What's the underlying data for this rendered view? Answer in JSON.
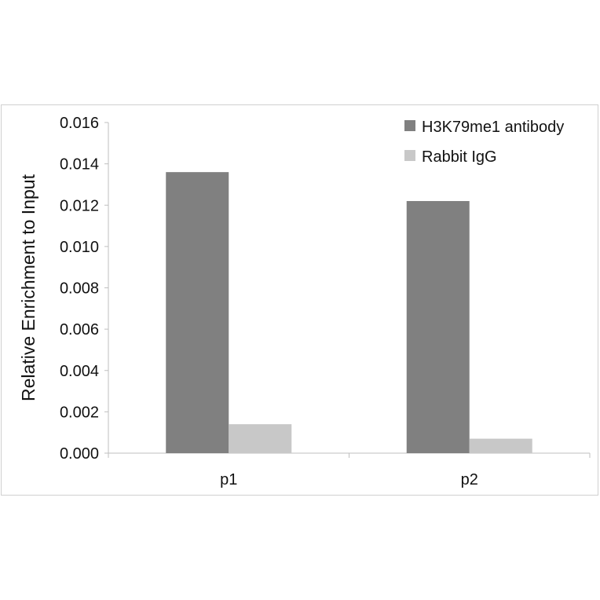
{
  "chart_data": {
    "type": "bar",
    "title": "",
    "xlabel": "",
    "ylabel": "Relative Enrichment to Input",
    "categories": [
      "p1",
      "p2"
    ],
    "series": [
      {
        "name": "H3K79me1 antibody",
        "values": [
          0.0136,
          0.0122
        ],
        "color": "#808080"
      },
      {
        "name": "Rabbit IgG",
        "values": [
          0.0014,
          0.0007
        ],
        "color": "#c8c8c8"
      }
    ],
    "ylim": [
      0,
      0.016
    ],
    "yticks": [
      "0.000",
      "0.002",
      "0.004",
      "0.006",
      "0.008",
      "0.010",
      "0.012",
      "0.014",
      "0.016"
    ],
    "grid": false,
    "legend": "top-right"
  }
}
